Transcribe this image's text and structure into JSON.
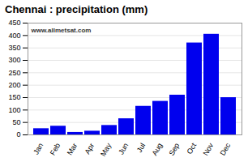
{
  "chart_data": {
    "type": "bar",
    "title": "Chennai : precipitation (mm)",
    "categories": [
      "Jan",
      "Feb",
      "Mar",
      "Apr",
      "May",
      "Jun",
      "Jul",
      "Aug",
      "Sep",
      "Oct",
      "Nov",
      "Dec"
    ],
    "values": [
      25,
      35,
      10,
      15,
      38,
      65,
      115,
      135,
      160,
      370,
      405,
      150
    ],
    "color": "#0000ee",
    "ylim": [
      0,
      450
    ],
    "yticks": [
      0,
      50,
      100,
      150,
      200,
      250,
      300,
      350,
      400,
      450
    ],
    "grid": true,
    "annotation": "www.allmetsat.com"
  }
}
